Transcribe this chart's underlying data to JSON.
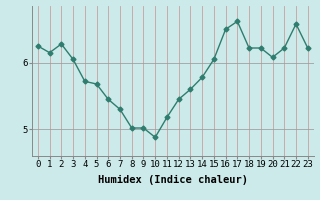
{
  "x": [
    0,
    1,
    2,
    3,
    4,
    5,
    6,
    7,
    8,
    9,
    10,
    11,
    12,
    13,
    14,
    15,
    16,
    17,
    18,
    19,
    20,
    21,
    22,
    23
  ],
  "y": [
    6.25,
    6.15,
    6.28,
    6.05,
    5.72,
    5.68,
    5.45,
    5.3,
    5.02,
    5.02,
    4.88,
    5.18,
    5.45,
    5.6,
    5.78,
    6.05,
    6.5,
    6.62,
    6.22,
    6.22,
    6.08,
    6.22,
    6.58,
    6.22
  ],
  "line_color": "#2e7d6e",
  "marker": "D",
  "marker_size": 2.5,
  "bg_color": "#cceaea",
  "vgrid_color": "#c8a0a0",
  "hgrid_color": "#a0a0a0",
  "xlabel": "Humidex (Indice chaleur)",
  "ylabel": "",
  "title": "",
  "xlim": [
    -0.5,
    23.5
  ],
  "ylim": [
    4.6,
    6.85
  ],
  "yticks": [
    5,
    6
  ],
  "xticks": [
    0,
    1,
    2,
    3,
    4,
    5,
    6,
    7,
    8,
    9,
    10,
    11,
    12,
    13,
    14,
    15,
    16,
    17,
    18,
    19,
    20,
    21,
    22,
    23
  ],
  "xlabel_fontsize": 7.5,
  "tick_fontsize": 6.5,
  "linewidth": 1.0
}
